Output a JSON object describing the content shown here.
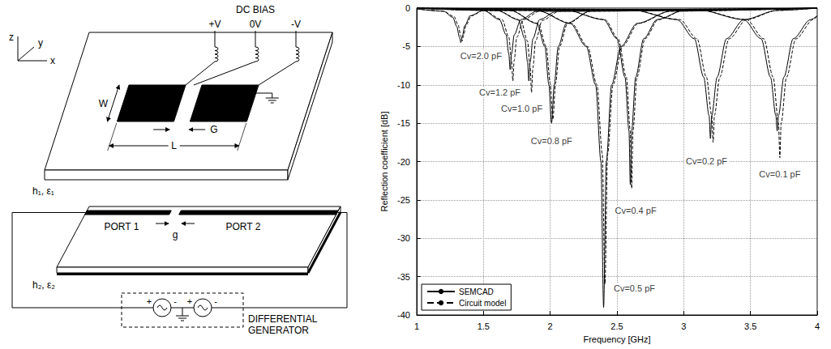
{
  "diagram": {
    "axes": [
      "z",
      "y",
      "x"
    ],
    "dc_bias": {
      "title": "DC BIAS",
      "terminals": [
        "+V",
        "0V",
        "-V"
      ]
    },
    "dimensions": {
      "width": "W",
      "length": "L",
      "gap": "G",
      "port_gap": "g"
    },
    "top_substrate": "h₁, ε₁",
    "bottom_substrate": "h₂, ε₂",
    "ports": [
      "PORT 1",
      "PORT 2"
    ],
    "generator": {
      "label": "DIFFERENTIAL GENERATOR",
      "signs": [
        "+",
        "-"
      ]
    }
  },
  "chart_data": {
    "type": "line",
    "xlabel": "Frequency [GHz]",
    "ylabel": "Reflection coefficient [dB]",
    "xlim": [
      1,
      4
    ],
    "xticks": [
      1,
      1.5,
      2,
      2.5,
      3,
      3.5,
      4
    ],
    "ylim": [
      -40,
      0
    ],
    "yticks": [
      -40,
      -35,
      -30,
      -25,
      -20,
      -15,
      -10,
      -5,
      0
    ],
    "grid": true,
    "legend": "lower left",
    "labels": [
      "Cv=2.0 pF",
      "Cv=1.2 pF",
      "Cv=1.0 pF",
      "Cv=0.8 pF",
      "Cv=0.5 pF",
      "Cv=0.4 pF",
      "Cv=0.2 pF",
      "Cv=0.1 pF"
    ],
    "series": [
      {
        "name": "SEMCAD",
        "color": "#000000",
        "line_style": "solid",
        "curves": [
          {
            "x": [
              1,
              1.2,
              1.27,
              1.3,
              1.32,
              1.33,
              1.34,
              1.36,
              1.4,
              1.5,
              4
            ],
            "values": [
              -0.1,
              -0.4,
              -1.2,
              -2.4,
              -3.8,
              -4.5,
              -3.8,
              -2.3,
              -1,
              -0.3,
              0
            ]
          },
          {
            "x": [
              1,
              1.5,
              1.62,
              1.67,
              1.69,
              1.7,
              1.71,
              1.73,
              1.78,
              1.9,
              4
            ],
            "values": [
              0,
              -0.3,
              -1.5,
              -3.5,
              -6,
              -8,
              -6,
              -3.5,
              -1.5,
              -0.4,
              0
            ]
          },
          {
            "x": [
              1,
              1.6,
              1.76,
              1.81,
              1.83,
              1.84,
              1.85,
              1.87,
              1.92,
              2.05,
              4
            ],
            "values": [
              0,
              -0.3,
              -1.5,
              -4,
              -7,
              -9.5,
              -7,
              -4,
              -1.5,
              -0.4,
              0
            ]
          },
          {
            "x": [
              1,
              1.7,
              1.9,
              1.96,
              1.99,
              2.01,
              2.03,
              2.06,
              2.12,
              2.3,
              4
            ],
            "values": [
              0,
              -0.3,
              -2,
              -5,
              -10,
              -15,
              -10,
              -5,
              -2,
              -0.4,
              0
            ]
          },
          {
            "x": [
              1,
              1.9,
              2.15,
              2.27,
              2.34,
              2.38,
              2.4,
              2.42,
              2.46,
              2.53,
              2.65,
              2.9,
              4
            ],
            "values": [
              0,
              -0.3,
              -2,
              -5,
              -10,
              -20,
              -39,
              -20,
              -10,
              -5,
              -2,
              -0.4,
              0
            ]
          },
          {
            "x": [
              1,
              2.1,
              2.4,
              2.5,
              2.56,
              2.59,
              2.6,
              2.61,
              2.64,
              2.7,
              2.8,
              3,
              4
            ],
            "values": [
              0,
              -0.2,
              -1.5,
              -4,
              -9,
              -16,
              -23,
              -16,
              -9,
              -4,
              -1.5,
              -0.3,
              0
            ]
          },
          {
            "x": [
              1,
              2.6,
              2.95,
              3.08,
              3.15,
              3.19,
              3.2,
              3.21,
              3.25,
              3.32,
              3.45,
              3.7,
              4
            ],
            "values": [
              0,
              -0.2,
              -1.5,
              -4,
              -9,
              -14,
              -17,
              -14,
              -9,
              -4,
              -1.5,
              -0.3,
              0
            ]
          },
          {
            "x": [
              1,
              3.1,
              3.45,
              3.58,
              3.65,
              3.69,
              3.7,
              3.71,
              3.75,
              3.82,
              3.95,
              4
            ],
            "values": [
              0,
              -0.2,
              -1.5,
              -4,
              -9,
              -14,
              -16,
              -14,
              -9,
              -4,
              -1.5,
              -1
            ]
          }
        ]
      },
      {
        "name": "Circuit model",
        "color": "#000000",
        "line_style": "dashed",
        "curves": [
          {
            "x": [
              1,
              1.2,
              1.28,
              1.31,
              1.33,
              1.34,
              1.35,
              1.37,
              1.41,
              1.5,
              4
            ],
            "values": [
              -0.1,
              -0.4,
              -1.1,
              -2.2,
              -3.6,
              -4.3,
              -3.6,
              -2.2,
              -1,
              -0.3,
              0
            ]
          },
          {
            "x": [
              1,
              1.5,
              1.64,
              1.69,
              1.71,
              1.72,
              1.73,
              1.75,
              1.8,
              1.92,
              4
            ],
            "values": [
              0,
              -0.3,
              -1.5,
              -3.8,
              -6.8,
              -9.5,
              -6.8,
              -3.8,
              -1.5,
              -0.4,
              0
            ]
          },
          {
            "x": [
              1,
              1.6,
              1.78,
              1.83,
              1.85,
              1.86,
              1.87,
              1.89,
              1.94,
              2.07,
              4
            ],
            "values": [
              0,
              -0.3,
              -1.6,
              -4.3,
              -7.8,
              -11,
              -7.8,
              -4.3,
              -1.6,
              -0.4,
              0
            ]
          },
          {
            "x": [
              1,
              1.7,
              1.91,
              1.97,
              2,
              2.02,
              2.04,
              2.07,
              2.13,
              2.3,
              4
            ],
            "values": [
              0,
              -0.3,
              -2,
              -5,
              -9.8,
              -14.5,
              -9.8,
              -5,
              -2,
              -0.4,
              0
            ]
          },
          {
            "x": [
              1,
              1.9,
              2.16,
              2.28,
              2.35,
              2.39,
              2.41,
              2.43,
              2.47,
              2.54,
              2.66,
              2.9,
              4
            ],
            "values": [
              0,
              -0.3,
              -2,
              -5,
              -10,
              -19,
              -36,
              -19,
              -10,
              -5,
              -2,
              -0.4,
              0
            ]
          },
          {
            "x": [
              1,
              2.1,
              2.41,
              2.51,
              2.57,
              2.6,
              2.61,
              2.62,
              2.65,
              2.71,
              2.81,
              3,
              4
            ],
            "values": [
              0,
              -0.2,
              -1.5,
              -4,
              -9,
              -16,
              -23.5,
              -16,
              -9,
              -4,
              -1.5,
              -0.3,
              0
            ]
          },
          {
            "x": [
              1,
              2.6,
              2.97,
              3.1,
              3.17,
              3.21,
              3.22,
              3.23,
              3.27,
              3.34,
              3.47,
              3.7,
              4
            ],
            "values": [
              0,
              -0.2,
              -1.5,
              -4,
              -9,
              -14,
              -17.5,
              -14,
              -9,
              -4,
              -1.5,
              -0.3,
              0
            ]
          },
          {
            "x": [
              1,
              3.1,
              3.47,
              3.6,
              3.67,
              3.71,
              3.72,
              3.73,
              3.77,
              3.84,
              3.97,
              4
            ],
            "values": [
              0,
              -0.2,
              -1.5,
              -4,
              -9,
              -15,
              -19.5,
              -15,
              -9,
              -4,
              -1.5,
              -1
            ]
          }
        ]
      }
    ]
  }
}
